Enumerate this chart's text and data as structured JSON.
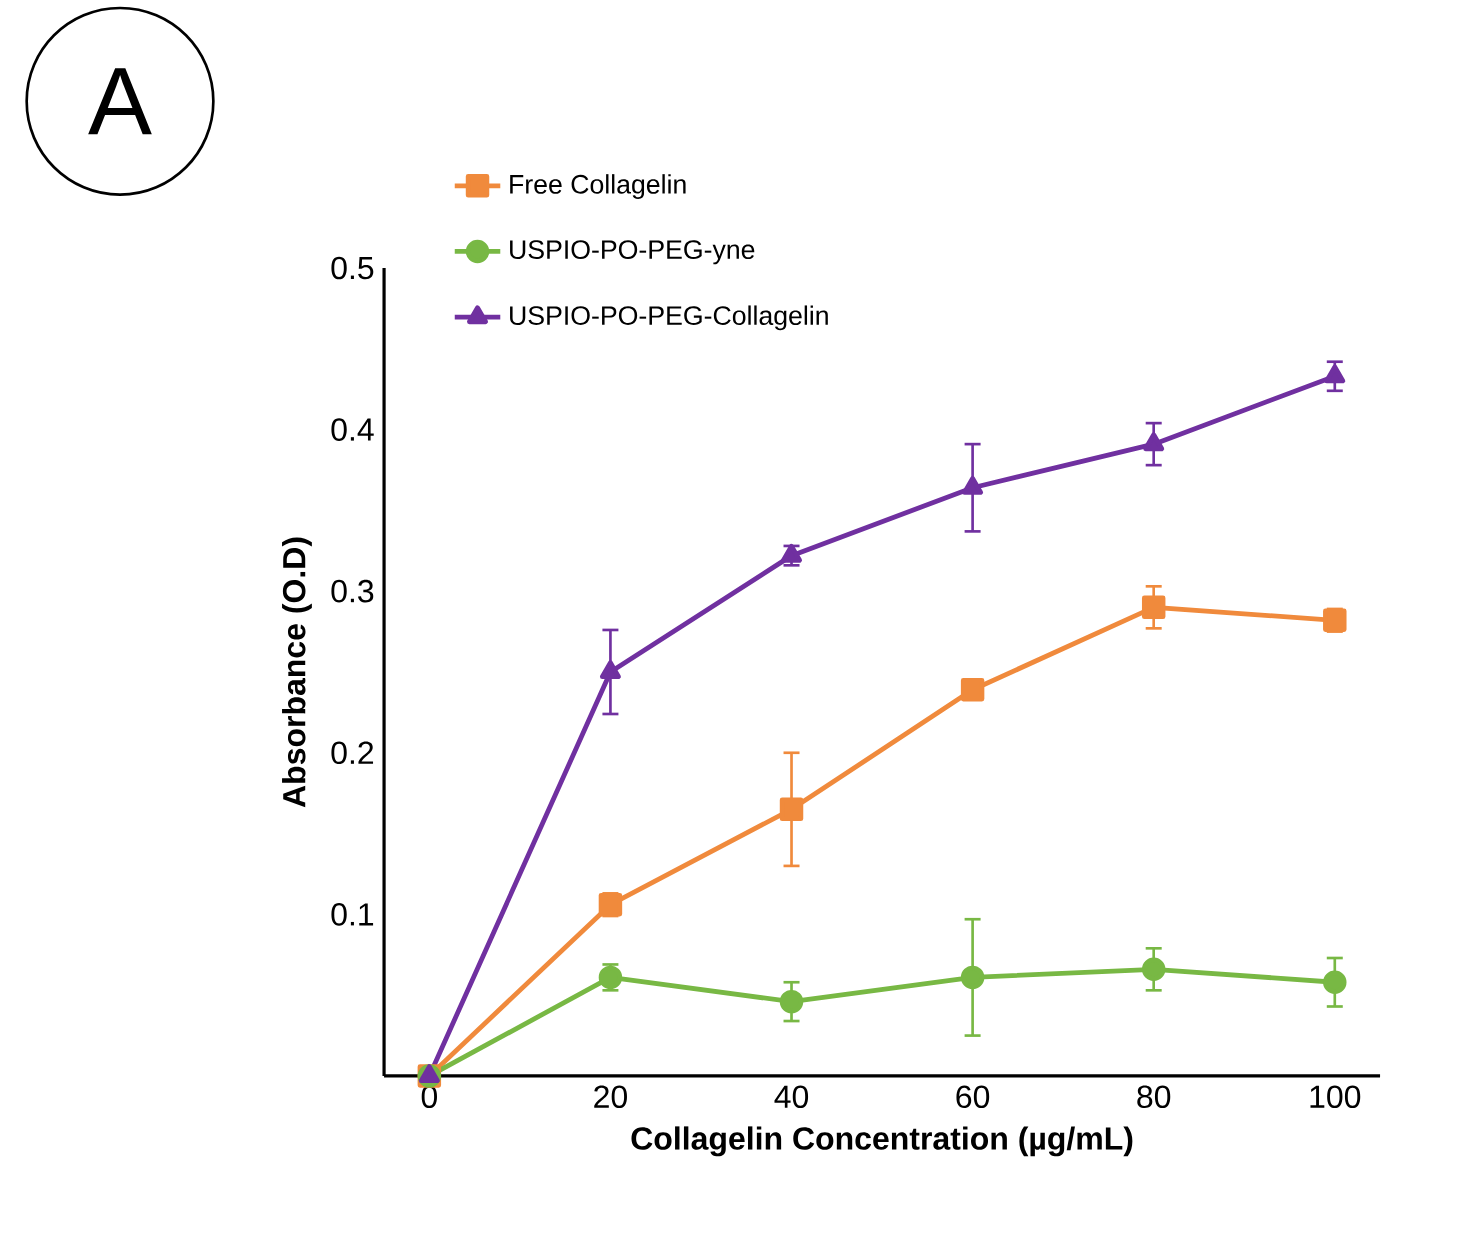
{
  "chart_data": {
    "type": "line",
    "xlabel": "Collagelin Concentration (µg/mL)",
    "ylabel": "Absorbance (O.D)",
    "annotations": [
      "A"
    ],
    "x": [
      0,
      20,
      40,
      60,
      80,
      100
    ],
    "xlim": [
      -5,
      105
    ],
    "xticks": [
      0,
      20,
      40,
      60,
      80,
      100
    ],
    "ylim": [
      0,
      0.5
    ],
    "yticks": [
      0.1,
      0.2,
      0.3,
      0.4,
      0.5
    ],
    "legend": "top left",
    "grid": false,
    "series": [
      {
        "name": "Free Collagelin",
        "color": "#f08a3c",
        "marker": "square",
        "values": [
          0,
          0.106,
          0.165,
          0.239,
          0.29,
          0.282
        ],
        "errors": [
          null,
          0.007,
          0.035,
          0.004,
          0.013,
          0.007
        ]
      },
      {
        "name": "USPIO-PO-PEG-yne",
        "color": "#78b844",
        "marker": "circle",
        "values": [
          0,
          0.061,
          0.046,
          0.061,
          0.066,
          0.058
        ],
        "errors": [
          null,
          0.008,
          0.012,
          0.036,
          0.013,
          0.015
        ]
      },
      {
        "name": "USPIO-PO-PEG-Collagelin",
        "color": "#7030a0",
        "marker": "triangle",
        "values": [
          0,
          0.25,
          0.322,
          0.364,
          0.391,
          0.433
        ],
        "errors": [
          null,
          0.026,
          0.006,
          0.027,
          0.013,
          0.009
        ]
      }
    ]
  }
}
